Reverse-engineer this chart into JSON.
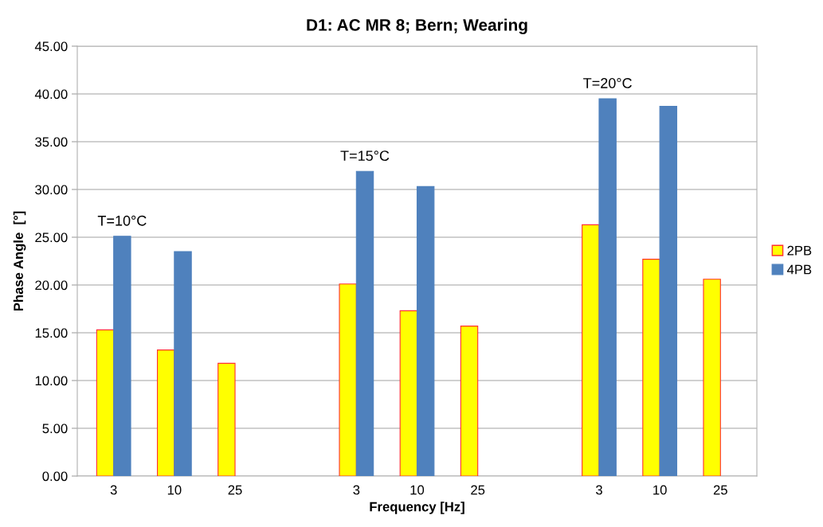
{
  "chart_data": {
    "type": "bar",
    "title": "D1: AC MR 8; Bern; Wearing",
    "xlabel": "Frequency [Hz]",
    "ylabel": "Phase Angle  [°]",
    "categories": [
      "3",
      "10",
      "25",
      null,
      "3",
      "10",
      "25",
      null,
      "3",
      "10",
      "25"
    ],
    "series": [
      {
        "name": "2PB",
        "color": "#ffff00",
        "values": [
          15.3,
          13.2,
          11.8,
          null,
          20.1,
          17.3,
          15.7,
          null,
          26.3,
          22.7,
          20.6
        ]
      },
      {
        "name": "4PB",
        "color": "#4f81bd",
        "values": [
          25.1,
          23.5,
          null,
          null,
          31.9,
          30.3,
          null,
          null,
          39.5,
          38.7,
          null
        ]
      }
    ],
    "ylim": [
      0,
      45
    ],
    "yticks": [
      {
        "value": 0,
        "label": "0.00"
      },
      {
        "value": 5,
        "label": "5.00"
      },
      {
        "value": 10,
        "label": "10.00"
      },
      {
        "value": 15,
        "label": "15.00"
      },
      {
        "value": 20,
        "label": "20.00"
      },
      {
        "value": 25,
        "label": "25.00"
      },
      {
        "value": 30,
        "label": "30.00"
      },
      {
        "value": 35,
        "label": "35.00"
      },
      {
        "value": 40,
        "label": "40.00"
      },
      {
        "value": 45,
        "label": "45.00"
      }
    ],
    "annotations": [
      "T=10°C",
      "T=15°C",
      "T=20°C"
    ],
    "grid": "y",
    "legend": "right"
  }
}
